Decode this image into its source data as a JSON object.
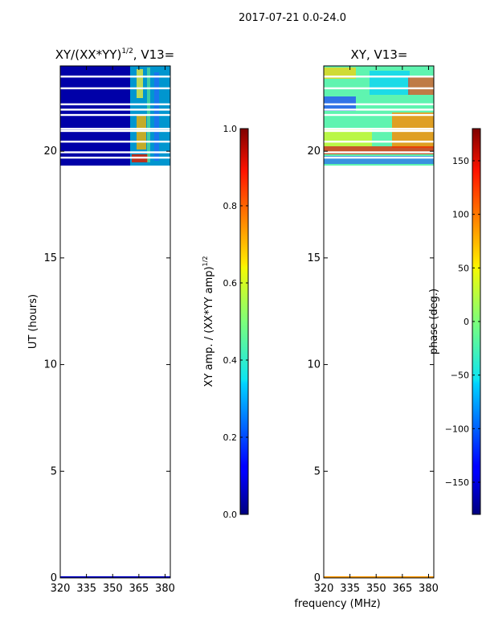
{
  "suptitle": "2017-07-21 0.0-24.0",
  "xlabel_shared": "frequency (MHz)",
  "chart_data": [
    {
      "type": "heatmap",
      "title": "XY/(XX*YY)",
      "title_superscript": "1/2",
      "title_suffix": ", V13=",
      "ylabel": "UT (hours)",
      "xlim": [
        320,
        383
      ],
      "ylim": [
        0,
        24
      ],
      "xticks": [
        320,
        335,
        350,
        365,
        380
      ],
      "yticks": [
        0,
        5,
        10,
        15,
        20
      ],
      "colorbar": {
        "label": "XY amp. / (XX*YY amp)",
        "label_superscript": "1/2",
        "range": [
          0.0,
          1.0
        ],
        "ticks": [
          "0.0",
          "0.2",
          "0.4",
          "0.6",
          "0.8",
          "1.0"
        ],
        "tick_values": [
          0,
          0.2,
          0.4,
          0.6,
          0.8,
          1.0
        ]
      },
      "data_ut_range": [
        19.3,
        24
      ],
      "bright_freq_range": [
        360,
        383
      ]
    },
    {
      "type": "heatmap",
      "title": "XY, V13=",
      "ylabel": "",
      "xlim": [
        320,
        383
      ],
      "ylim": [
        0,
        24
      ],
      "xticks": [
        320,
        335,
        350,
        365,
        380
      ],
      "yticks": [
        0,
        5,
        10,
        15,
        20
      ],
      "colorbar": {
        "label": "phase (deg.)",
        "range": [
          -180,
          180
        ],
        "ticks": [
          "−150",
          "−100",
          "−50",
          "0",
          "50",
          "100",
          "150"
        ],
        "tick_values": [
          -150,
          -100,
          -50,
          0,
          50,
          100,
          150
        ]
      },
      "data_ut_range": [
        19.3,
        24
      ]
    }
  ],
  "colors": {
    "background": "#ffffff",
    "axis": "#000000",
    "gap": "#ffffff"
  }
}
